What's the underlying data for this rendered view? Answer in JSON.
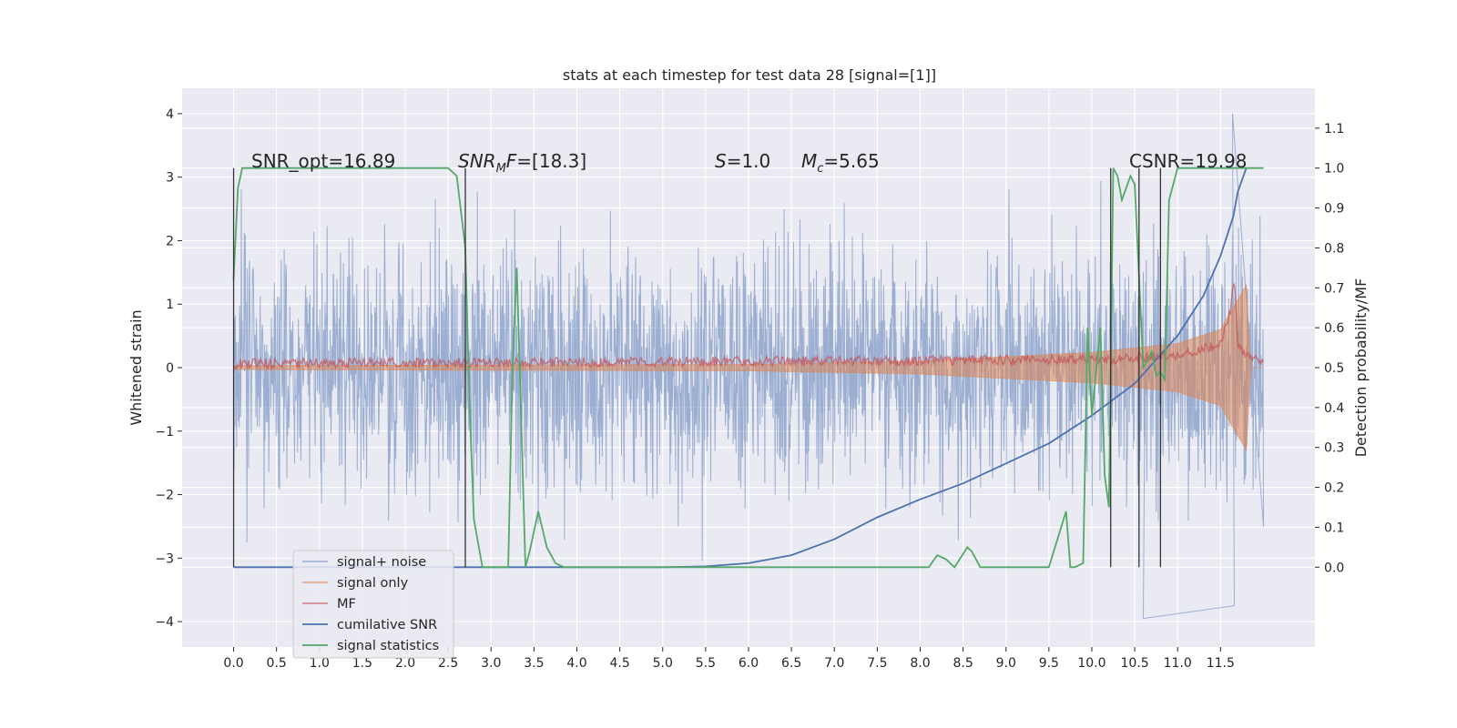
{
  "chart_data": {
    "type": "line",
    "title": "stats at each timestep for test data 28 [signal=[1]]",
    "xlabel": "",
    "ylabel_left": "Whitened strain",
    "ylabel_right": "Detection probability/MF",
    "xlim": [
      -0.6,
      12.6
    ],
    "ylim_left": [
      -4.4,
      4.4
    ],
    "ylim_right": [
      -0.2,
      1.2
    ],
    "x_ticks": [
      "0.0",
      "0.5",
      "1.0",
      "1.5",
      "2.0",
      "2.5",
      "3.0",
      "3.5",
      "4.0",
      "4.5",
      "5.0",
      "5.5",
      "6.0",
      "6.5",
      "7.0",
      "7.5",
      "8.0",
      "8.5",
      "9.0",
      "9.5",
      "10.0",
      "10.5",
      "11.0",
      "11.5"
    ],
    "y_ticks_left": [
      "4",
      "3",
      "2",
      "1",
      "0",
      "−1",
      "−2",
      "−3",
      "−4"
    ],
    "y_ticks_right": [
      "1.1",
      "1.0",
      "0.9",
      "0.8",
      "0.7",
      "0.6",
      "0.5",
      "0.4",
      "0.3",
      "0.2",
      "0.1",
      "0.0"
    ],
    "grid": true,
    "legend_position": "lower-left",
    "colors": {
      "signal_noise": "#4c72b0",
      "signal_only": "#dd8452",
      "mf": "#c44e52",
      "cumulative_snr": "#4c72b0",
      "signal_statistics": "#55a868",
      "axes_bg": "#eaeaf2",
      "vlines": "#333333"
    },
    "annotations": {
      "snr_opt": "SNR_opt=16.89",
      "snr_mf_base": "SNR",
      "snr_mf_sub": "M",
      "snr_mf_f": "F",
      "snr_mf_value": "=[18.3]",
      "s_italic": "S",
      "s_value": "=1.0",
      "mc_base": "M",
      "mc_sub": "c",
      "mc_value": "=5.65",
      "csnr": "CSNR=19.98"
    },
    "vertical_lines_x": [
      0.0,
      2.7,
      10.22,
      10.55,
      10.8
    ],
    "series": [
      {
        "name": "signal+ noise",
        "axis": "left",
        "style": "noise band",
        "envelope_typical": [
          -1.8,
          2.0
        ],
        "peaks_max": 4.0,
        "peaks_min": -3.95,
        "x_range": [
          0.0,
          12.0
        ]
      },
      {
        "name": "signal only",
        "axis": "left",
        "style": "chirp envelope",
        "amplitude_x": [
          0.0,
          6.0,
          8.0,
          9.0,
          10.0,
          11.0,
          11.5,
          11.8,
          11.85,
          12.0
        ],
        "amplitude": [
          0.03,
          0.05,
          0.1,
          0.17,
          0.24,
          0.38,
          0.6,
          1.3,
          0.0,
          0.0
        ]
      },
      {
        "name": "MF",
        "axis": "right",
        "style": "noisy line",
        "baseline": 0.51,
        "x": [
          0.0,
          10.0,
          11.0,
          11.5,
          11.62,
          11.66,
          11.7,
          12.0
        ],
        "y": [
          0.51,
          0.52,
          0.53,
          0.56,
          0.65,
          0.72,
          0.55,
          0.51
        ]
      },
      {
        "name": "cumilative SNR",
        "axis": "right",
        "x": [
          0.0,
          5.0,
          5.5,
          6.0,
          6.5,
          7.0,
          7.5,
          8.0,
          8.5,
          9.0,
          9.5,
          10.0,
          10.5,
          11.0,
          11.3,
          11.5,
          11.65,
          11.7,
          11.8
        ],
        "y": [
          0.0,
          0.0,
          0.002,
          0.01,
          0.03,
          0.07,
          0.125,
          0.17,
          0.21,
          0.26,
          0.31,
          0.38,
          0.46,
          0.58,
          0.68,
          0.78,
          0.88,
          0.94,
          1.0
        ]
      },
      {
        "name": "signal statistics",
        "axis": "right",
        "x": [
          0.0,
          0.05,
          0.1,
          2.2,
          2.5,
          2.6,
          2.7,
          2.75,
          2.8,
          2.9,
          3.0,
          3.2,
          3.25,
          3.3,
          3.4,
          3.45,
          3.55,
          3.65,
          3.75,
          3.85,
          4.5,
          8.1,
          8.2,
          8.3,
          8.4,
          8.55,
          8.6,
          8.7,
          9.5,
          9.7,
          9.75,
          9.8,
          9.9,
          9.95,
          10.0,
          10.1,
          10.15,
          10.2,
          10.25,
          10.3,
          10.35,
          10.45,
          10.5,
          10.6,
          10.7,
          10.75,
          10.8,
          10.85,
          10.9,
          11.0,
          11.1,
          12.0
        ],
        "y": [
          0.72,
          0.95,
          1.0,
          1.0,
          1.0,
          0.98,
          0.8,
          0.4,
          0.12,
          0.0,
          0.0,
          0.0,
          0.5,
          0.75,
          0.0,
          0.04,
          0.14,
          0.05,
          0.01,
          0.0,
          0.0,
          0.0,
          0.03,
          0.02,
          0.0,
          0.05,
          0.04,
          0.0,
          0.0,
          0.14,
          0.0,
          0.0,
          0.01,
          0.6,
          0.38,
          0.6,
          0.23,
          0.15,
          1.0,
          0.98,
          0.92,
          0.98,
          0.96,
          0.5,
          0.54,
          0.48,
          0.49,
          0.47,
          0.92,
          1.0,
          1.0,
          1.0
        ]
      }
    ]
  }
}
